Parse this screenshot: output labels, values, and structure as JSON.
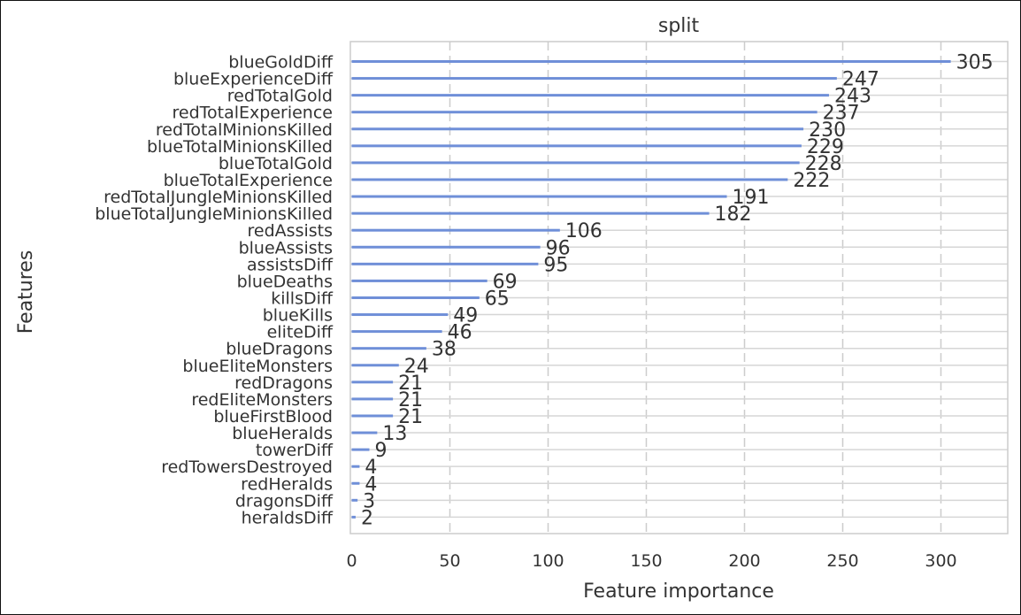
{
  "chart_data": {
    "type": "bar",
    "orientation": "horizontal",
    "title": "split",
    "xlabel": "Feature importance",
    "ylabel": "Features",
    "xlim": [
      0,
      335
    ],
    "xticks": [
      0,
      50,
      100,
      150,
      200,
      250,
      300
    ],
    "grid": true,
    "bar_color": "#6f8fd8",
    "categories": [
      "blueGoldDiff",
      "blueExperienceDiff",
      "redTotalGold",
      "redTotalExperience",
      "redTotalMinionsKilled",
      "blueTotalMinionsKilled",
      "blueTotalGold",
      "blueTotalExperience",
      "redTotalJungleMinionsKilled",
      "blueTotalJungleMinionsKilled",
      "redAssists",
      "blueAssists",
      "assistsDiff",
      "blueDeaths",
      "killsDiff",
      "blueKills",
      "eliteDiff",
      "blueDragons",
      "blueEliteMonsters",
      "redDragons",
      "redEliteMonsters",
      "blueFirstBlood",
      "blueHeralds",
      "towerDiff",
      "redTowersDestroyed",
      "redHeralds",
      "dragonsDiff",
      "heraldsDiff"
    ],
    "values": [
      305,
      247,
      243,
      237,
      230,
      229,
      228,
      222,
      191,
      182,
      106,
      96,
      95,
      69,
      65,
      49,
      46,
      38,
      24,
      21,
      21,
      21,
      13,
      9,
      4,
      4,
      3,
      2
    ]
  }
}
